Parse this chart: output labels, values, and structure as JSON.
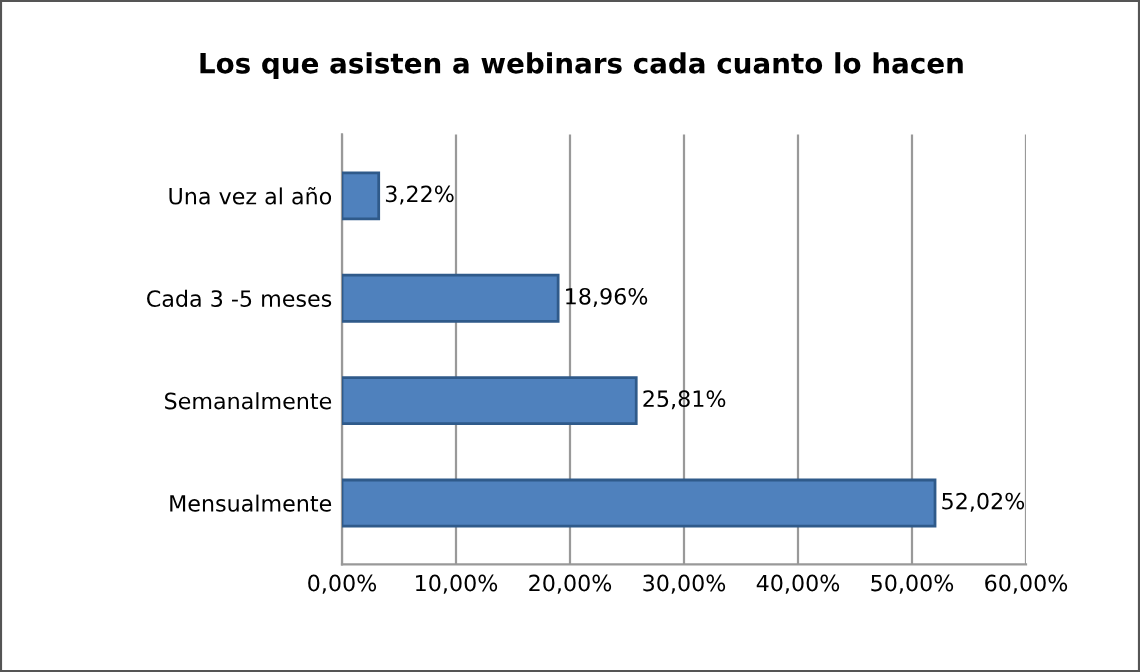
{
  "chart_data": {
    "type": "bar",
    "orientation": "horizontal",
    "title": "Los que asisten a webinars cada cuanto lo hacen",
    "categories": [
      "Una vez al año",
      "Cada 3 -5 meses",
      "Semanalmente",
      "Mensualmente"
    ],
    "values": [
      3.22,
      18.96,
      25.81,
      52.02
    ],
    "value_labels": [
      "3,22%",
      "18,96%",
      "25,81%",
      "52,02%"
    ],
    "color": "#4f81bd",
    "xlim": [
      0,
      60
    ],
    "xticks": [
      {
        "value": 0,
        "label": "0,00%"
      },
      {
        "value": 10,
        "label": "10,00%"
      },
      {
        "value": 20,
        "label": "20,00%"
      },
      {
        "value": 30,
        "label": "30,00%"
      },
      {
        "value": 40,
        "label": "40,00%"
      },
      {
        "value": 50,
        "label": "50,00%"
      },
      {
        "value": 60,
        "label": "60,00%"
      }
    ],
    "grid": "x",
    "legend": false
  }
}
